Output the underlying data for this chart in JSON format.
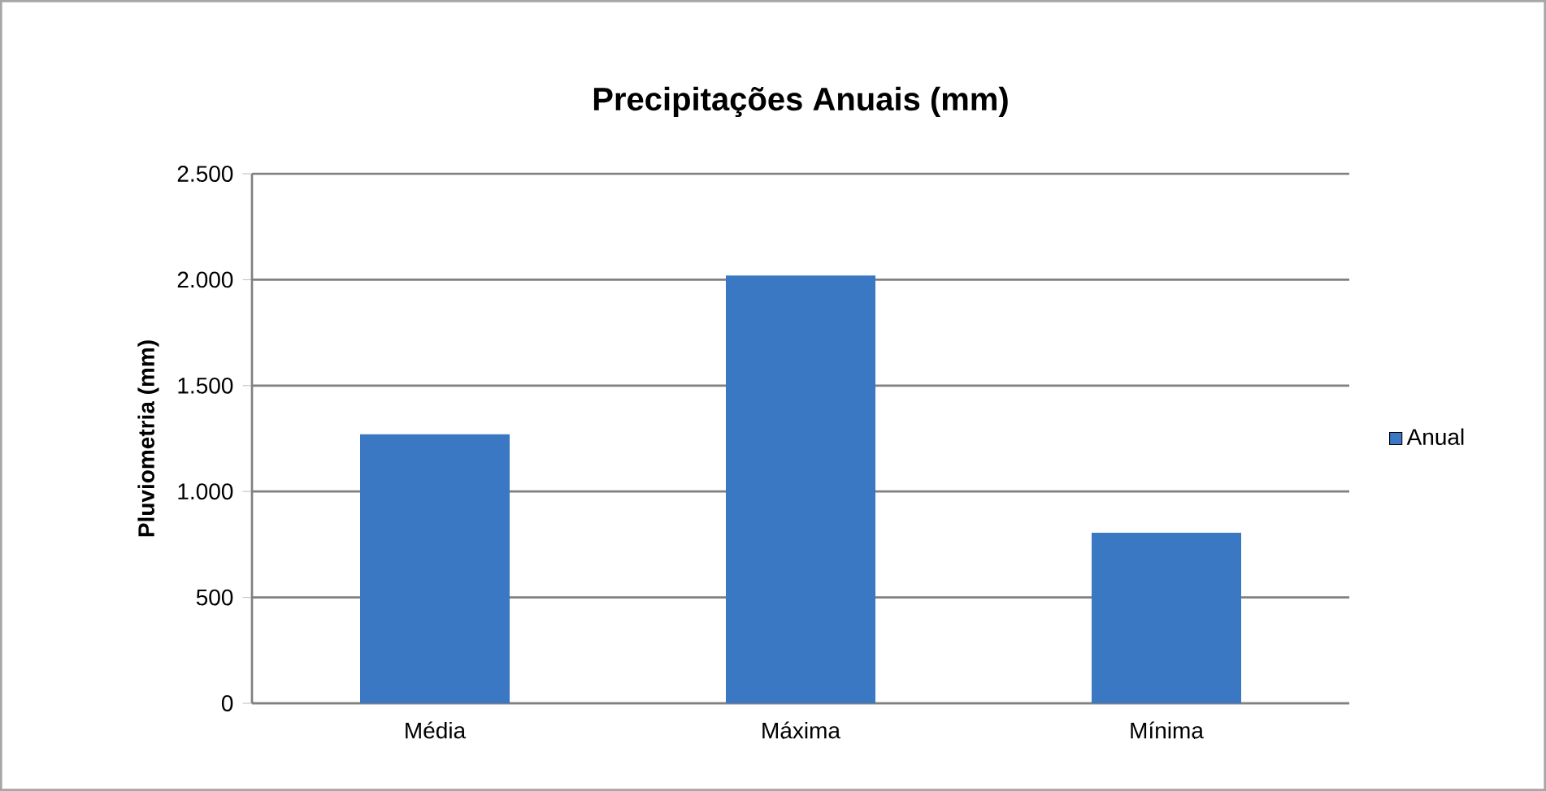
{
  "chart_data": {
    "type": "bar",
    "title": "Precipitações Anuais (mm)",
    "ylabel": "Pluviometria (mm)",
    "categories": [
      "Média",
      "Máxima",
      "Mínima"
    ],
    "series": [
      {
        "name": "Anual",
        "color": "#3a78c4",
        "values": [
          1270,
          2020,
          805
        ]
      }
    ],
    "ylim": [
      0,
      2500
    ],
    "yticks": [
      0,
      500,
      {
        "value": 1000,
        "label": "1.000"
      },
      {
        "value": 1500,
        "label": "1.500"
      },
      {
        "value": 2000,
        "label": "2.000"
      },
      {
        "value": 2500,
        "label": "2.500"
      }
    ],
    "grid": "y",
    "legend": "right"
  }
}
